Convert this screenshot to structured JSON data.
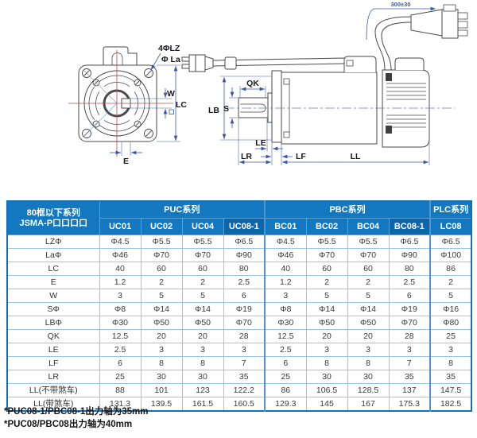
{
  "colors": {
    "header_blue": "#1478c0",
    "header_blue_dark": "#0e66aa",
    "table_border_light": "#9cc4e4",
    "table_border_strong": "#1270b8",
    "dimension_blue": "#3a57a8",
    "centerline_red": "#b84d4a",
    "drawing_gray": "#4a4a4a"
  },
  "diagram": {
    "front": {
      "holes_label": "4ΦLZ",
      "hub_label": "Φ La",
      "w": "W",
      "lc": "LC",
      "e": "E"
    },
    "side": {
      "lb": "LB",
      "s": "S",
      "qk": "QK",
      "le": "LE",
      "lr": "LR",
      "lf": "LF",
      "ll": "LL",
      "cable_length": "300±30"
    }
  },
  "table": {
    "corner_line1": "80框以下系列",
    "corner_line2": "JSMA-P口口口口",
    "groups": [
      {
        "label": "PUC系列",
        "span": 4
      },
      {
        "label": "PBC系列",
        "span": 4
      },
      {
        "label": "PLC系列",
        "span": 1
      }
    ],
    "columns": [
      "UC01",
      "UC02",
      "UC04",
      "UC08-1",
      "BC01",
      "BC02",
      "BC04",
      "BC08-1",
      "LC08"
    ],
    "rows": [
      {
        "label": "LZΦ",
        "values": [
          "Φ4.5",
          "Φ5.5",
          "Φ5.5",
          "Φ6.5",
          "Φ4.5",
          "Φ5.5",
          "Φ5.5",
          "Φ6.5",
          "Φ6.5"
        ]
      },
      {
        "label": "LaΦ",
        "values": [
          "Φ46",
          "Φ70",
          "Φ70",
          "Φ90",
          "Φ46",
          "Φ70",
          "Φ70",
          "Φ90",
          "Φ100"
        ]
      },
      {
        "label": "LC",
        "values": [
          "40",
          "60",
          "60",
          "80",
          "40",
          "60",
          "60",
          "80",
          "86"
        ]
      },
      {
        "label": "E",
        "values": [
          "1.2",
          "2",
          "2",
          "2.5",
          "1.2",
          "2",
          "2",
          "2.5",
          "2"
        ]
      },
      {
        "label": "W",
        "values": [
          "3",
          "5",
          "5",
          "6",
          "3",
          "5",
          "5",
          "6",
          "5"
        ]
      },
      {
        "label": "SΦ",
        "values": [
          "Φ8",
          "Φ14",
          "Φ14",
          "Φ19",
          "Φ8",
          "Φ14",
          "Φ14",
          "Φ19",
          "Φ16"
        ]
      },
      {
        "label": "LBΦ",
        "values": [
          "Φ30",
          "Φ50",
          "Φ50",
          "Φ70",
          "Φ30",
          "Φ50",
          "Φ50",
          "Φ70",
          "Φ80"
        ]
      },
      {
        "label": "QK",
        "values": [
          "12.5",
          "20",
          "20",
          "28",
          "12.5",
          "20",
          "20",
          "28",
          "25"
        ]
      },
      {
        "label": "LE",
        "values": [
          "2.5",
          "3",
          "3",
          "3",
          "2.5",
          "3",
          "3",
          "3",
          "3"
        ]
      },
      {
        "label": "LF",
        "values": [
          "6",
          "8",
          "8",
          "7",
          "6",
          "8",
          "8",
          "7",
          "8"
        ]
      },
      {
        "label": "LR",
        "values": [
          "25",
          "30",
          "30",
          "35",
          "25",
          "30",
          "30",
          "35",
          "35"
        ]
      },
      {
        "label": "LL(不带煞车)",
        "values": [
          "88",
          "101",
          "123",
          "122.2",
          "86",
          "106.5",
          "128.5",
          "137",
          "147.5"
        ]
      },
      {
        "label": "LL(带煞车)",
        "values": [
          "131.3",
          "139.5",
          "161.5",
          "160.5",
          "129.3",
          "145",
          "167",
          "175.3",
          "182.5"
        ]
      }
    ]
  },
  "notes": [
    "*PUC08-1/PBC08-1出力轴为35mm",
    "*PUC08/PBC08出力轴为40mm"
  ]
}
